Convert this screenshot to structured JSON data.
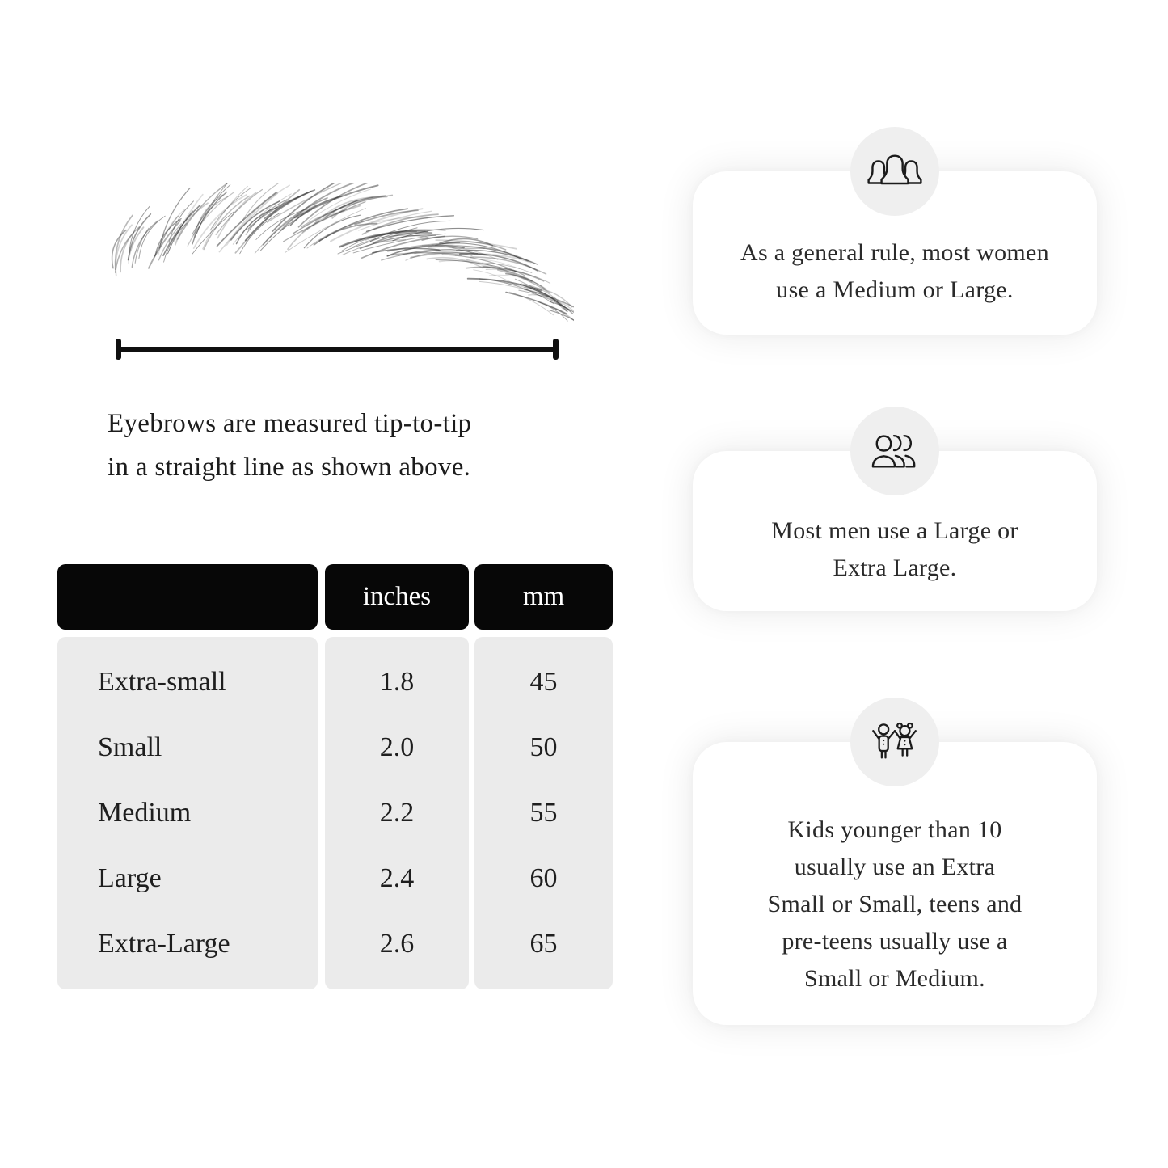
{
  "illustration": {
    "caption_lines": [
      "Eyebrows are measured tip-to-tip",
      "in a straight line as shown above."
    ]
  },
  "size_table": {
    "headers": [
      "",
      "inches",
      "mm"
    ],
    "rows": [
      {
        "label": "Extra-small",
        "inches": "1.8",
        "mm": "45"
      },
      {
        "label": "Small",
        "inches": "2.0",
        "mm": "50"
      },
      {
        "label": "Medium",
        "inches": "2.2",
        "mm": "55"
      },
      {
        "label": "Large",
        "inches": "2.4",
        "mm": "60"
      },
      {
        "label": "Extra-Large",
        "inches": "2.6",
        "mm": "65"
      }
    ]
  },
  "cards": [
    {
      "icon": "women-group-icon",
      "lines": [
        "As a general rule, most women",
        "use a Medium or Large."
      ]
    },
    {
      "icon": "men-group-icon",
      "lines": [
        "Most men use a Large or",
        "Extra Large."
      ]
    },
    {
      "icon": "kids-icon",
      "lines": [
        "Kids younger than 10",
        "usually use an Extra",
        "Small or Small, teens and",
        "pre-teens usually use a",
        "Small or Medium."
      ]
    }
  ],
  "colors": {
    "background": "#ffffff",
    "table_header_bg": "#070707",
    "table_header_text": "#ffffff",
    "table_body_bg": "#ebebeb",
    "text": "#1e1e1e",
    "card_bg": "#ffffff",
    "icon_circle_bg": "#efefef",
    "measure_line": "#101010"
  }
}
